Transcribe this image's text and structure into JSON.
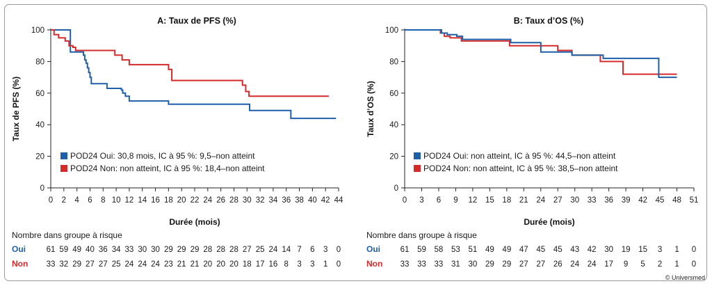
{
  "copyright": "© Univers­med",
  "chart_data": [
    {
      "type": "line",
      "title": "A: Taux de PFS (%)",
      "xlabel": "Durée (mois)",
      "ylabel": "Taux de PFS (%)",
      "xlim": [
        0,
        44
      ],
      "ylim": [
        0,
        100
      ],
      "xticks": [
        "0",
        "2",
        "4",
        "6",
        "8",
        "10",
        "12",
        "14",
        "16",
        "18",
        "20",
        "22",
        "24",
        "26",
        "28",
        "30",
        "32",
        "34",
        "36",
        "38",
        "40",
        "42",
        "44"
      ],
      "yticks": [
        "0",
        "20",
        "40",
        "60",
        "80",
        "100"
      ],
      "legend_position": "bottom-left",
      "series": [
        {
          "name": "POD24 Oui: 30,8 mois, IC à 95 %: 9,5–non atteint",
          "color": "#1f5fa8",
          "x": [
            0,
            2.5,
            3,
            4.6,
            5,
            5.2,
            5.4,
            5.6,
            5.8,
            6.0,
            6.2,
            8.2,
            8.6,
            9.8,
            10.8,
            11.0,
            11.4,
            12.0,
            17.6,
            18.0,
            29.6,
            30.4,
            36.7,
            43.6
          ],
          "y": [
            100,
            100,
            86,
            86,
            84,
            81,
            79,
            76,
            73,
            70,
            66,
            66,
            63,
            63,
            62,
            60,
            58,
            55,
            55,
            53,
            53,
            49,
            44,
            44
          ]
        },
        {
          "name": "POD24 Non: non atteint, IC à 95 %: 18,4–non atteint",
          "color": "#d42a2a",
          "x": [
            0,
            0.5,
            1.2,
            2.2,
            2.8,
            3.4,
            3.8,
            8.4,
            9.8,
            10.9,
            12.0,
            17.6,
            18.0,
            18.5,
            23.2,
            29.3,
            29.8,
            30.3,
            42.5
          ],
          "y": [
            100,
            97,
            95,
            93,
            90,
            89,
            87,
            87,
            84,
            81,
            78,
            78,
            75,
            68,
            68,
            65,
            61,
            58,
            58
          ]
        }
      ],
      "risk_table": {
        "title": "Nombre dans groupe à risque",
        "groups": [
          {
            "label": "Oui",
            "color": "#1f5fa8",
            "values": [
              "61",
              "59",
              "49",
              "40",
              "36",
              "34",
              "33",
              "30",
              "30",
              "29",
              "29",
              "29",
              "28",
              "28",
              "28",
              "27",
              "25",
              "24",
              "14",
              "7",
              "6",
              "3",
              "0"
            ]
          },
          {
            "label": "Non",
            "color": "#d42a2a",
            "values": [
              "33",
              "32",
              "29",
              "27",
              "27",
              "25",
              "24",
              "24",
              "24",
              "23",
              "21",
              "21",
              "20",
              "20",
              "20",
              "18",
              "17",
              "16",
              "8",
              "3",
              "3",
              "1",
              "0"
            ]
          }
        ]
      }
    },
    {
      "type": "line",
      "title": "B: Taux d’OS (%)",
      "xlabel": "Durée (mois)",
      "ylabel": "Taux d’OS (%)",
      "xlim": [
        0,
        51
      ],
      "ylim": [
        0,
        100
      ],
      "xticks": [
        "0",
        "3",
        "6",
        "9",
        "12",
        "15",
        "18",
        "21",
        "24",
        "27",
        "30",
        "33",
        "36",
        "39",
        "42",
        "45",
        "48",
        "51"
      ],
      "yticks": [
        "0",
        "20",
        "40",
        "60",
        "80",
        "100"
      ],
      "legend_position": "bottom-left",
      "series": [
        {
          "name": "POD24 Oui: non atteint, IC à 95 %: 44,5–non atteint",
          "color": "#1f5fa8",
          "x": [
            0,
            6.5,
            7.5,
            9.2,
            10.2,
            18.0,
            18.7,
            24.0,
            28.2,
            29.5,
            35.0,
            44.4,
            44.8,
            48.0
          ],
          "y": [
            100,
            98,
            97,
            96,
            94,
            94,
            92,
            86,
            86,
            84,
            82,
            82,
            70,
            70
          ],
          "draw_order": 2
        },
        {
          "name": "POD24 Non: non atteint, IC à 95 %: 38,5–non atteint",
          "color": "#d42a2a",
          "x": [
            0,
            6.3,
            7.0,
            8.0,
            10.0,
            13.5,
            18.5,
            25.5,
            27.0,
            29.5,
            32.5,
            34.5,
            37.5,
            38.5,
            45.0,
            48.0
          ],
          "y": [
            100,
            98,
            96,
            95,
            93,
            93,
            90,
            90,
            87,
            84,
            84,
            80,
            80,
            72,
            72,
            72
          ],
          "draw_order": 1
        }
      ],
      "risk_table": {
        "title": "Nombre dans groupe à risque",
        "groups": [
          {
            "label": "Oui",
            "color": "#1f5fa8",
            "values": [
              "61",
              "59",
              "58",
              "53",
              "51",
              "49",
              "49",
              "47",
              "45",
              "45",
              "43",
              "42",
              "30",
              "19",
              "15",
              "3",
              "1",
              "0"
            ]
          },
          {
            "label": "Non",
            "color": "#d42a2a",
            "values": [
              "33",
              "33",
              "33",
              "31",
              "30",
              "29",
              "29",
              "27",
              "27",
              "26",
              "24",
              "24",
              "17",
              "9",
              "5",
              "2",
              "1",
              "0"
            ]
          }
        ]
      }
    }
  ]
}
